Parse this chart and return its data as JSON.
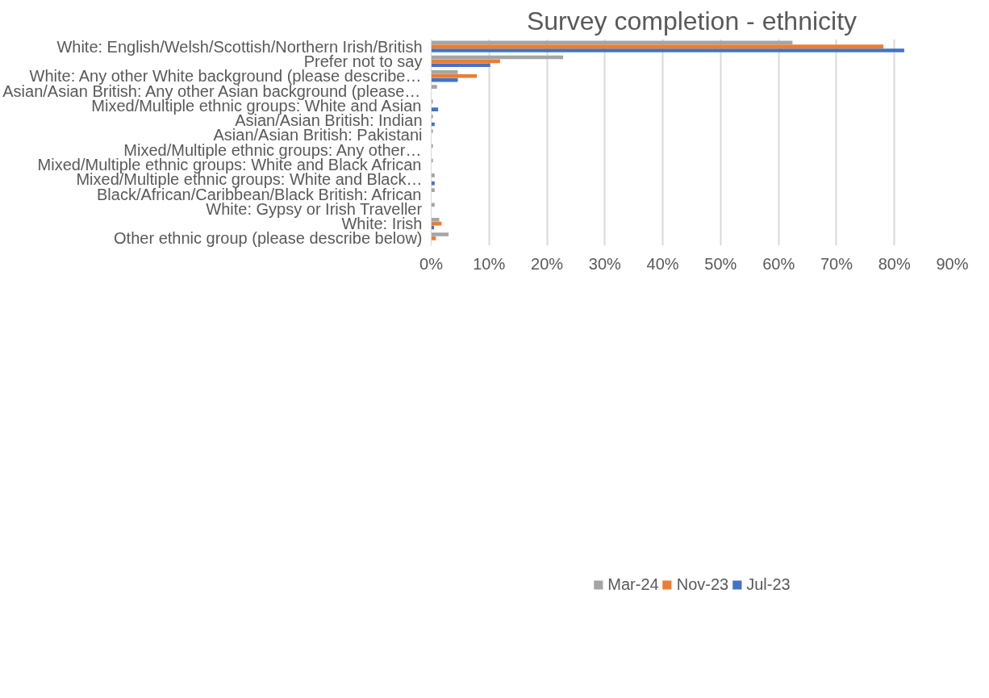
{
  "chart_data": {
    "type": "bar",
    "orientation": "horizontal",
    "title": "Survey completion - ethnicity",
    "categories": [
      "White: English/Welsh/Scottish/Northern Irish/British",
      "Prefer not to say",
      "White: Any other White background (please describe…",
      "Asian/Asian British: Any other Asian background (please…",
      "Mixed/Multiple ethnic groups: White and Asian",
      "Asian/Asian British: Indian",
      "Asian/Asian British: Pakistani",
      "Mixed/Multiple ethnic groups: Any other…",
      "Mixed/Multiple ethnic groups: White and Black African",
      "Mixed/Multiple ethnic groups: White and Black…",
      "Black/African/Caribbean/Black British: African",
      "White: Gypsy or Irish Traveller",
      "White: Irish",
      "Other ethnic group (please describe below)"
    ],
    "series": [
      {
        "name": "Mar-24",
        "color": "#a5a5a5",
        "values": [
          62.4,
          22.8,
          4.6,
          1.0,
          0.3,
          0.3,
          0.3,
          0.3,
          0.3,
          0.6,
          0.6,
          0.6,
          1.4,
          3.0
        ]
      },
      {
        "name": "Nov-23",
        "color": "#ed7d31",
        "values": [
          78.1,
          11.9,
          7.9,
          null,
          null,
          null,
          null,
          null,
          null,
          null,
          null,
          null,
          1.8,
          0.8
        ]
      },
      {
        "name": "Jul-23",
        "color": "#4472c4",
        "values": [
          81.7,
          10.2,
          4.6,
          null,
          1.2,
          0.6,
          null,
          null,
          null,
          0.6,
          null,
          null,
          0.5,
          null
        ]
      }
    ],
    "xlim": [
      0,
      90
    ],
    "xticks": [
      {
        "value": 0,
        "label": "0%"
      },
      {
        "value": 10,
        "label": "10%"
      },
      {
        "value": 20,
        "label": "20%"
      },
      {
        "value": 30,
        "label": "30%"
      },
      {
        "value": 40,
        "label": "40%"
      },
      {
        "value": 50,
        "label": "50%"
      },
      {
        "value": 60,
        "label": "60%"
      },
      {
        "value": 70,
        "label": "70%"
      },
      {
        "value": 80,
        "label": "80%"
      },
      {
        "value": 90,
        "label": "90%"
      }
    ],
    "grid": "x",
    "legend": "bottom"
  }
}
